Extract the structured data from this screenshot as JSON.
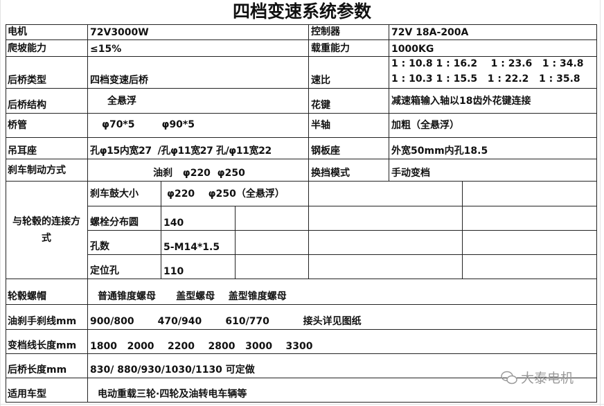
{
  "title": "四档变速系统参数",
  "rows": {
    "motor": {
      "label": "电机",
      "value": "72V3000W"
    },
    "controller": {
      "label": "控制器",
      "value": "72V  18A-200A"
    },
    "climb": {
      "label": "爬坡能力",
      "value": "≤15%"
    },
    "load": {
      "label": "载重能力",
      "value": "1000KG"
    },
    "axle_type": {
      "label": "后桥类型",
      "value": "四档变速后桥"
    },
    "ratio": {
      "label": "速比",
      "line1": "1 : 10.8 1 : 16.2    1 : 23.6   1 : 34.8",
      "line2": "1 : 10.3 1 : 15.5   1 : 22.2   1 : 35.8"
    },
    "axle_struct": {
      "label": "后桥结构",
      "value": "全悬浮"
    },
    "spline": {
      "label": "花键",
      "value": "减速箱输入轴以18齿外花键连接"
    },
    "tube": {
      "label": "桥管",
      "value": "φ70*5        φ90*5"
    },
    "half_shaft": {
      "label": "半轴",
      "value": "加粗（全悬浮）"
    },
    "lug": {
      "label": "吊耳座",
      "value": "孔φ15内宽27  /孔φ11宽27 孔/φ11宽22"
    },
    "plate_seat": {
      "label": "钢板座",
      "value": "外宽50mm内孔18.5"
    },
    "brake": {
      "label": "刹车制动方式",
      "value": "油刹   φ220  φ250"
    },
    "shift": {
      "label": "换挡模式",
      "value": "手动变档"
    },
    "hub": {
      "label": "与轮毂的连接方式",
      "drum_label": "刹车鼓大小",
      "drum_value": "φ220    φ250（全悬浮）",
      "bolt_label": "螺栓分布圆",
      "bolt_value": "140",
      "holes_label": "孔数",
      "holes_value": "5-M14*1.5",
      "locate_label": "定位孔",
      "locate_value": "110"
    },
    "nut": {
      "label": "轮毂螺帽",
      "value": "普通锥度螺母      盖型螺母    盖型锥度螺母"
    },
    "brake_line": {
      "label": "油刹手刹线mm",
      "value": "900/800       470/940       610/770          接头详见图纸"
    },
    "shift_line": {
      "label": "变档线长度mm",
      "value": "1800   2000    2200    2800   3000    3300"
    },
    "axle_len": {
      "label": "后桥长度mm",
      "value": "830/ 880/930/1030/1130 可定做"
    },
    "vehicle": {
      "label": "适用车型",
      "value": "电动重载三轮·四轮及油转电车辆等"
    }
  },
  "watermark": "大泰电机"
}
